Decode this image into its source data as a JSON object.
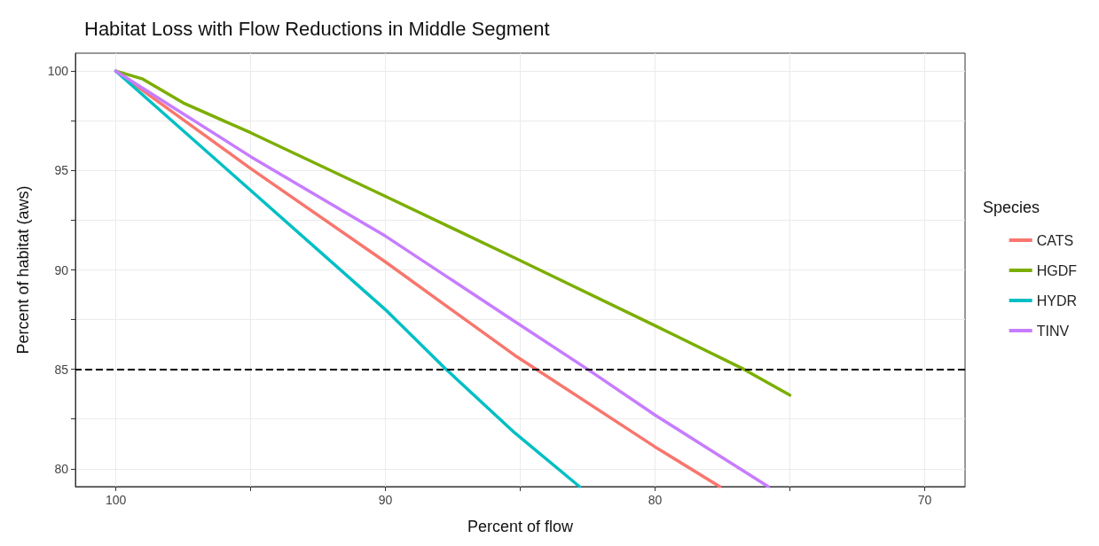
{
  "chart_data": {
    "type": "line",
    "title": "Habitat Loss with Flow Reductions in Middle Segment",
    "xlabel": "Percent of flow",
    "ylabel": "Percent of habitat (aws)",
    "legend_title": "Species",
    "legend": "right",
    "grid": true,
    "marker": "none",
    "line_style": "solid",
    "xlim": [
      101.5,
      68.5
    ],
    "xticks": [
      100,
      {
        "value": 95,
        "label": null
      },
      90,
      {
        "value": 85,
        "label": null
      },
      80,
      {
        "value": 75,
        "label": null
      },
      70
    ],
    "ylim": [
      79.1,
      100.9
    ],
    "yticks": [
      80,
      {
        "value": 82.5,
        "label": null
      },
      85,
      {
        "value": 87.5,
        "label": null
      },
      90,
      {
        "value": 92.5,
        "label": null
      },
      95,
      {
        "value": 97.5,
        "label": null
      },
      100
    ],
    "ref_lines": [
      {
        "axis": "y",
        "value": 85,
        "label": null,
        "color": "#000000",
        "line_style": "dashed"
      }
    ],
    "series": [
      {
        "name": "CATS",
        "color": "#f8766d",
        "x": [
          100,
          95,
          90,
          85.2,
          84.4,
          80,
          77.6
        ],
        "values": [
          100,
          95.1,
          90.4,
          85.7,
          85,
          81.1,
          79.1
        ]
      },
      {
        "name": "HGDF",
        "color": "#7cae00",
        "x": [
          100,
          99,
          97.5,
          95,
          90,
          85.2,
          80,
          76.7,
          75
        ],
        "values": [
          100,
          99.6,
          98.4,
          96.9,
          93.7,
          90.6,
          87.2,
          85,
          83.7
        ]
      },
      {
        "name": "HYDR",
        "color": "#00bfc4",
        "x": [
          100,
          95,
          90,
          87.75,
          85.2,
          82.8
        ],
        "values": [
          100,
          94,
          88,
          85,
          81.8,
          79.1
        ]
      },
      {
        "name": "TINV",
        "color": "#c77cff",
        "x": [
          100,
          95,
          90,
          85.2,
          82.5,
          80,
          75.8
        ],
        "values": [
          100,
          95.7,
          91.7,
          87.4,
          85,
          82.7,
          79.1
        ]
      }
    ]
  }
}
